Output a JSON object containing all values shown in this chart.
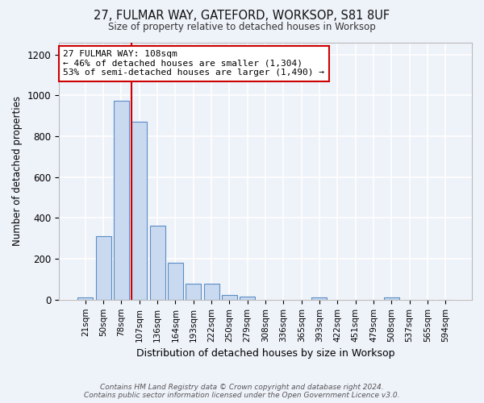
{
  "title": "27, FULMAR WAY, GATEFORD, WORKSOP, S81 8UF",
  "subtitle": "Size of property relative to detached houses in Worksop",
  "xlabel": "Distribution of detached houses by size in Worksop",
  "ylabel": "Number of detached properties",
  "categories": [
    "21sqm",
    "50sqm",
    "78sqm",
    "107sqm",
    "136sqm",
    "164sqm",
    "193sqm",
    "222sqm",
    "250sqm",
    "279sqm",
    "308sqm",
    "336sqm",
    "365sqm",
    "393sqm",
    "422sqm",
    "451sqm",
    "479sqm",
    "508sqm",
    "537sqm",
    "565sqm",
    "594sqm"
  ],
  "values": [
    12,
    312,
    975,
    870,
    362,
    180,
    80,
    80,
    22,
    15,
    0,
    0,
    0,
    12,
    0,
    0,
    0,
    12,
    0,
    0,
    0
  ],
  "bar_color": "#c9d9f0",
  "bar_edge_color": "#5b8ec4",
  "red_line_x": 2.575,
  "annotation_text": "27 FULMAR WAY: 108sqm\n← 46% of detached houses are smaller (1,304)\n53% of semi-detached houses are larger (1,490) →",
  "annotation_box_color": "white",
  "annotation_box_edge": "#cc0000",
  "red_line_color": "#cc0000",
  "footer_line1": "Contains HM Land Registry data © Crown copyright and database right 2024.",
  "footer_line2": "Contains public sector information licensed under the Open Government Licence v3.0.",
  "bg_color": "#eef2f9",
  "plot_bg_color": "#eef2f9",
  "grid_color": "#ffffff",
  "ylim": [
    0,
    1260
  ],
  "yticks": [
    0,
    200,
    400,
    600,
    800,
    1000,
    1200
  ]
}
